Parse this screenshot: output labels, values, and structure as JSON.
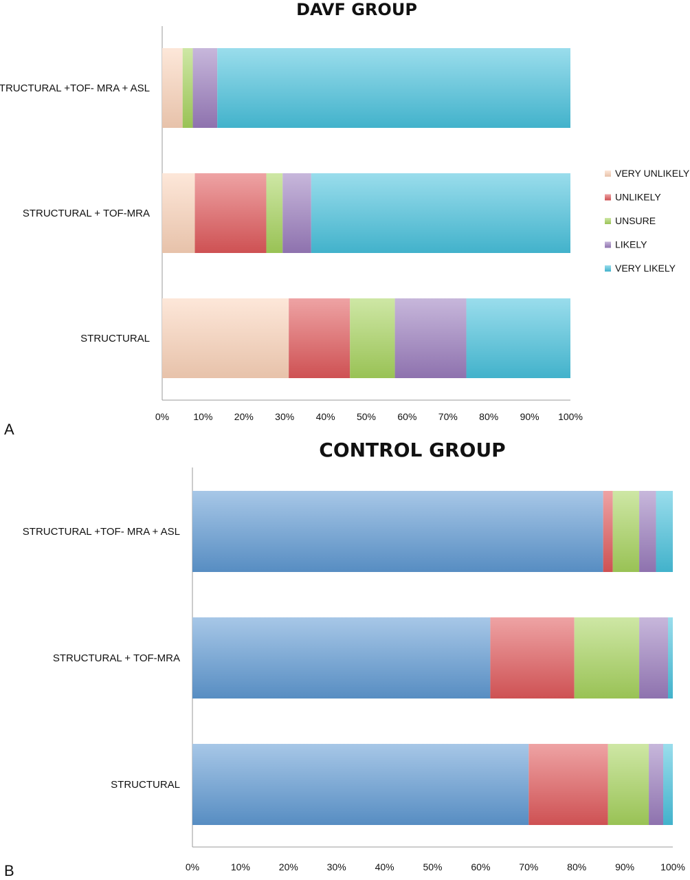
{
  "colors": {
    "very_unlikely": "#fbd3b9",
    "unlikely": "#e0585a",
    "unsure": "#a6d35c",
    "likely": "#9a7cbd",
    "very_likely": "#48c1dd",
    "very_unlikely_control": "#5f99d3"
  },
  "chart_data": [
    {
      "panel": "A",
      "type": "bar",
      "orientation": "horizontal",
      "stacked": "percent",
      "title": "DAVF GROUP",
      "categories": [
        "STRUCTURAL +TOF- MRA + ASL",
        "STRUCTURAL + TOF-MRA",
        "STRUCTURAL"
      ],
      "series": [
        {
          "name": "VERY UNLIKELY",
          "values": [
            5,
            8,
            31
          ]
        },
        {
          "name": "UNLIKELY",
          "values": [
            0,
            17.5,
            15
          ]
        },
        {
          "name": "UNSURE",
          "values": [
            2.5,
            4,
            11
          ]
        },
        {
          "name": "LIKELY",
          "values": [
            6,
            7,
            17.5
          ]
        },
        {
          "name": "VERY LIKELY",
          "values": [
            86.5,
            63.5,
            25.5
          ]
        }
      ],
      "xlim": [
        0,
        100
      ],
      "xticks": [
        "0%",
        "10%",
        "20%",
        "30%",
        "40%",
        "50%",
        "60%",
        "70%",
        "80%",
        "90%",
        "100%"
      ],
      "legend": {
        "position": "right",
        "items": [
          "VERY UNLIKELY",
          "UNLIKELY",
          "UNSURE",
          "LIKELY",
          "VERY LIKELY"
        ]
      }
    },
    {
      "panel": "B",
      "type": "bar",
      "orientation": "horizontal",
      "stacked": "percent",
      "title": "CONTROL GROUP",
      "categories": [
        "STRUCTURAL +TOF- MRA + ASL",
        "STRUCTURAL + TOF-MRA",
        "STRUCTURAL"
      ],
      "series": [
        {
          "name": "VERY UNLIKELY",
          "values": [
            85.5,
            62,
            70
          ]
        },
        {
          "name": "UNLIKELY",
          "values": [
            2,
            17.5,
            16.5
          ]
        },
        {
          "name": "UNSURE",
          "values": [
            5.5,
            13.5,
            8.5
          ]
        },
        {
          "name": "LIKELY",
          "values": [
            3.5,
            6,
            3
          ]
        },
        {
          "name": "VERY LIKELY",
          "values": [
            3.5,
            1,
            2
          ]
        }
      ],
      "xlim": [
        0,
        100
      ],
      "xticks": [
        "0%",
        "10%",
        "20%",
        "30%",
        "40%",
        "50%",
        "60%",
        "70%",
        "80%",
        "90%",
        "100%"
      ]
    }
  ]
}
